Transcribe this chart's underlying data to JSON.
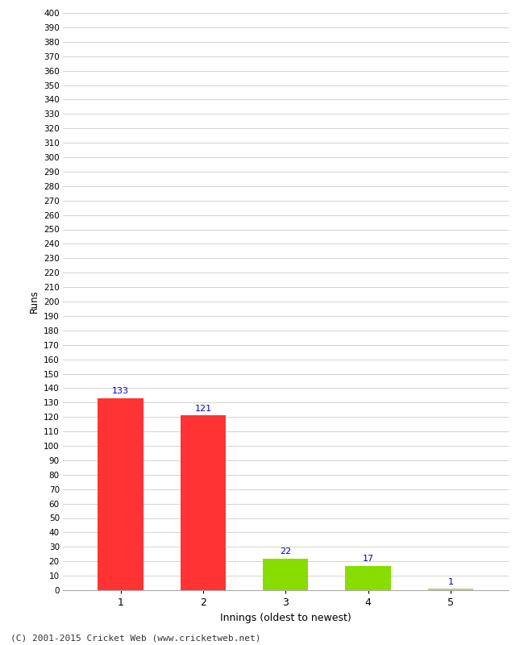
{
  "categories": [
    1,
    2,
    3,
    4,
    5
  ],
  "values": [
    133,
    121,
    22,
    17,
    1
  ],
  "bar_colors": [
    "#ff3333",
    "#ff3333",
    "#88dd00",
    "#88dd00",
    "#bbcc88"
  ],
  "xlabel": "Innings (oldest to newest)",
  "ylabel": "Runs",
  "ylim": [
    0,
    400
  ],
  "yticks": [
    0,
    10,
    20,
    30,
    40,
    50,
    60,
    70,
    80,
    90,
    100,
    110,
    120,
    130,
    140,
    150,
    160,
    170,
    180,
    190,
    200,
    210,
    220,
    230,
    240,
    250,
    260,
    270,
    280,
    290,
    300,
    310,
    320,
    330,
    340,
    350,
    360,
    370,
    380,
    390,
    400
  ],
  "label_color": "#0000cc",
  "background_color": "#ffffff",
  "grid_color": "#cccccc",
  "footer": "(C) 2001-2015 Cricket Web (www.cricketweb.net)",
  "bar_width": 0.55
}
